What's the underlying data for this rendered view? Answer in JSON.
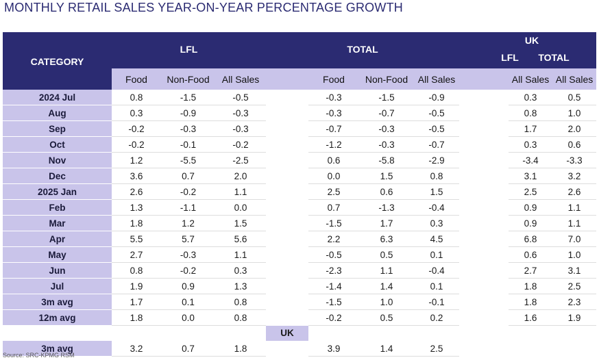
{
  "title": "MONTHLY RETAIL SALES YEAR-ON-YEAR PERCENTAGE GROWTH",
  "headers": {
    "category": "CATEGORY",
    "lfl": "LFL",
    "total": "TOTAL",
    "uk": "UK",
    "uk_lfl": "LFL",
    "uk_total": "TOTAL",
    "sub": [
      "Food",
      "Non-Food",
      "All Sales",
      "Food",
      "Non-Food",
      "All Sales",
      "All Sales",
      "All Sales"
    ]
  },
  "rows": [
    {
      "label": "2024 Jul",
      "v": [
        "0.8",
        "-1.5",
        "-0.5",
        "-0.3",
        "-1.5",
        "-0.9",
        "0.3",
        "0.5"
      ]
    },
    {
      "label": "Aug",
      "v": [
        "0.3",
        "-0.9",
        "-0.3",
        "-0.3",
        "-0.7",
        "-0.5",
        "0.8",
        "1.0"
      ]
    },
    {
      "label": "Sep",
      "v": [
        "-0.2",
        "-0.3",
        "-0.3",
        "-0.7",
        "-0.3",
        "-0.5",
        "1.7",
        "2.0"
      ]
    },
    {
      "label": "Oct",
      "v": [
        "-0.2",
        "-0.1",
        "-0.2",
        "-1.2",
        "-0.3",
        "-0.7",
        "0.3",
        "0.6"
      ]
    },
    {
      "label": "Nov",
      "v": [
        "1.2",
        "-5.5",
        "-2.5",
        "0.6",
        "-5.8",
        "-2.9",
        "-3.4",
        "-3.3"
      ]
    },
    {
      "label": "Dec",
      "v": [
        "3.6",
        "0.7",
        "2.0",
        "0.0",
        "1.5",
        "0.8",
        "3.1",
        "3.2"
      ]
    },
    {
      "label": "2025 Jan",
      "v": [
        "2.6",
        "-0.2",
        "1.1",
        "2.5",
        "0.6",
        "1.5",
        "2.5",
        "2.6"
      ]
    },
    {
      "label": "Feb",
      "v": [
        "1.3",
        "-1.1",
        "0.0",
        "0.7",
        "-1.3",
        "-0.4",
        "0.9",
        "1.1"
      ]
    },
    {
      "label": "Mar",
      "v": [
        "1.8",
        "1.2",
        "1.5",
        "-1.5",
        "1.7",
        "0.3",
        "0.9",
        "1.1"
      ]
    },
    {
      "label": "Apr",
      "v": [
        "5.5",
        "5.7",
        "5.6",
        "2.2",
        "6.3",
        "4.5",
        "6.8",
        "7.0"
      ]
    },
    {
      "label": "May",
      "v": [
        "2.7",
        "-0.3",
        "1.1",
        "-0.5",
        "0.5",
        "0.1",
        "0.6",
        "1.0"
      ]
    },
    {
      "label": "Jun",
      "v": [
        "0.8",
        "-0.2",
        "0.3",
        "-2.3",
        "1.1",
        "-0.4",
        "2.7",
        "3.1"
      ]
    },
    {
      "label": "Jul",
      "v": [
        "1.9",
        "0.9",
        "1.3",
        "-1.4",
        "1.4",
        "0.1",
        "1.8",
        "2.5"
      ]
    },
    {
      "label": "3m avg",
      "v": [
        "1.7",
        "0.1",
        "0.8",
        "-1.5",
        "1.0",
        "-0.1",
        "1.8",
        "2.3"
      ]
    },
    {
      "label": "12m avg",
      "v": [
        "1.8",
        "0.0",
        "0.8",
        "-0.2",
        "0.5",
        "0.2",
        "1.6",
        "1.9"
      ]
    }
  ],
  "uk_section": {
    "label": "UK",
    "row": {
      "label": "3m avg",
      "v": [
        "3.2",
        "0.7",
        "1.8",
        "3.9",
        "1.4",
        "2.5"
      ]
    }
  },
  "source": "Source: SRC-KPMG RSM",
  "colors": {
    "header": "#2b2b72",
    "category_bg": "#c9c4ea"
  },
  "chart_data": {
    "type": "table",
    "title": "MONTHLY RETAIL SALES YEAR-ON-YEAR PERCENTAGE GROWTH",
    "columns": [
      "LFL Food",
      "LFL Non-Food",
      "LFL All Sales",
      "TOTAL Food",
      "TOTAL Non-Food",
      "TOTAL All Sales",
      "UK LFL All Sales",
      "UK TOTAL All Sales"
    ],
    "categories": [
      "2024 Jul",
      "Aug",
      "Sep",
      "Oct",
      "Nov",
      "Dec",
      "2025 Jan",
      "Feb",
      "Mar",
      "Apr",
      "May",
      "Jun",
      "Jul",
      "3m avg",
      "12m avg"
    ]
  }
}
